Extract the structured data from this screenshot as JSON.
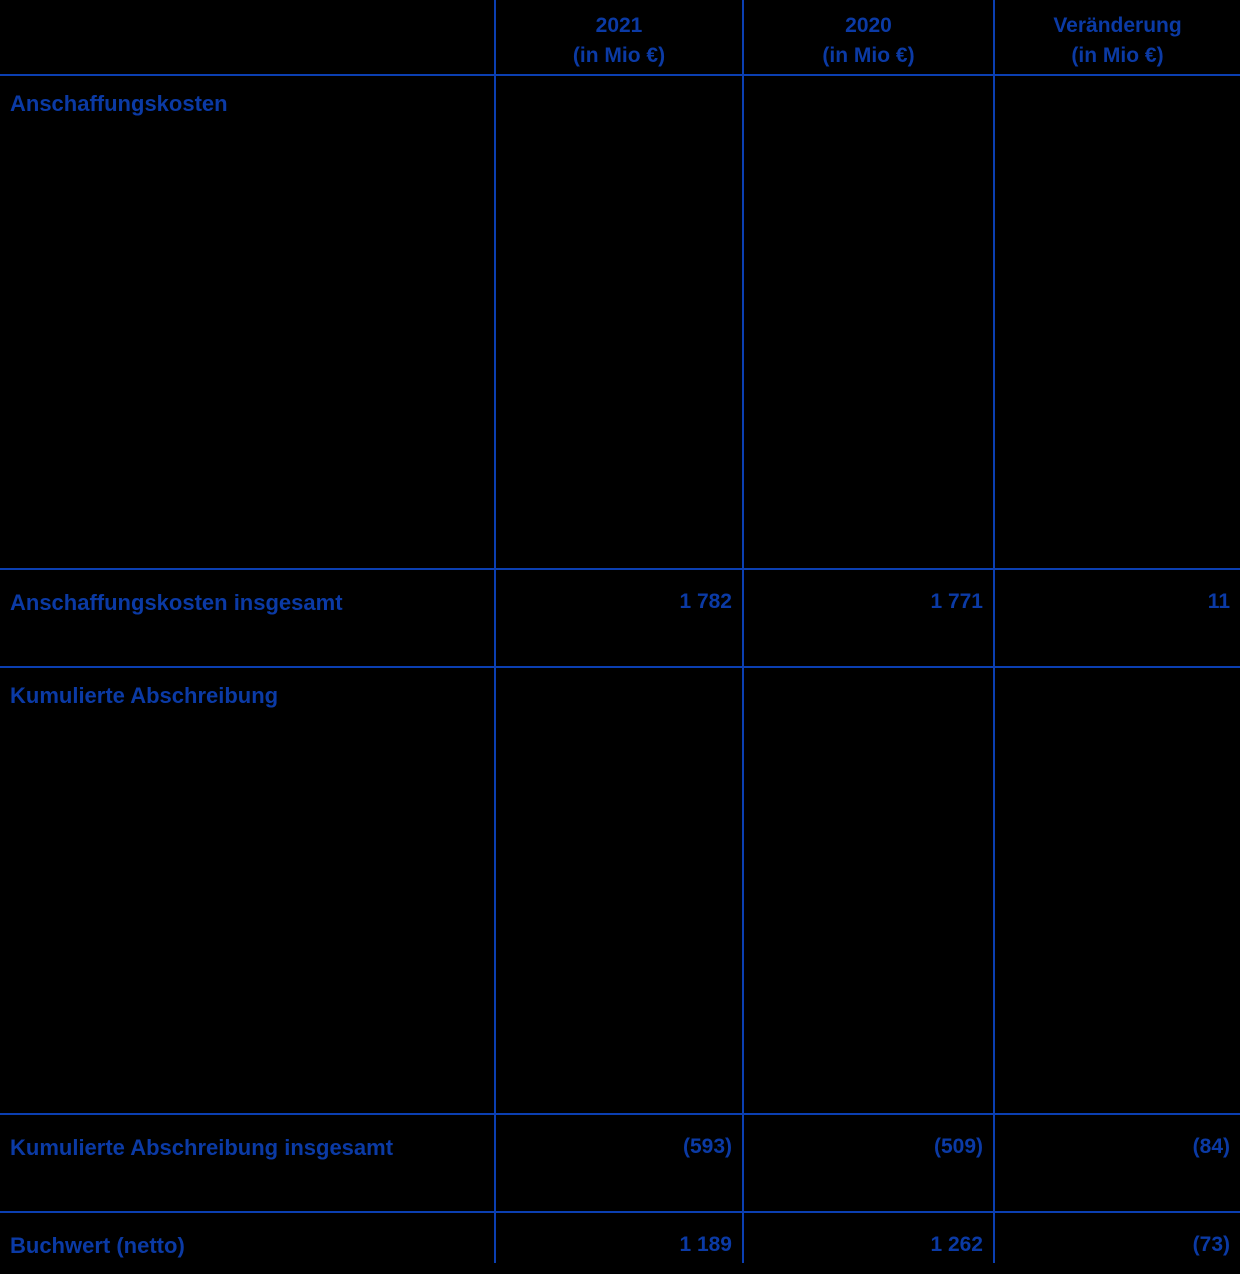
{
  "table": {
    "header": {
      "col_2021": {
        "year": "2021",
        "unit": "(in Mio €)"
      },
      "col_2020": {
        "year": "2020",
        "unit": "(in Mio €)"
      },
      "col_change": {
        "year": "Veränderung",
        "unit": "(in Mio €)"
      }
    },
    "sections": [
      {
        "label": "Anschaffungskosten",
        "total": {
          "label": "Anschaffungskosten insgesamt",
          "values": {
            "y2021": "1 782",
            "y2020": "1 771",
            "change": "11"
          }
        }
      },
      {
        "label": "Kumulierte Abschreibung",
        "total": {
          "label": "Kumulierte Abschreibung insgesamt",
          "values": {
            "y2021": "(593)",
            "y2020": "(509)",
            "change": "(84)"
          }
        }
      }
    ],
    "footer": {
      "label": "Buchwert (netto)",
      "values": {
        "y2021": "1 189",
        "y2020": "1 262",
        "change": "(73)"
      }
    }
  },
  "colors": {
    "background": "#000000",
    "text_blue": "#0b3aa5",
    "line_blue": "#0b3fb2"
  }
}
